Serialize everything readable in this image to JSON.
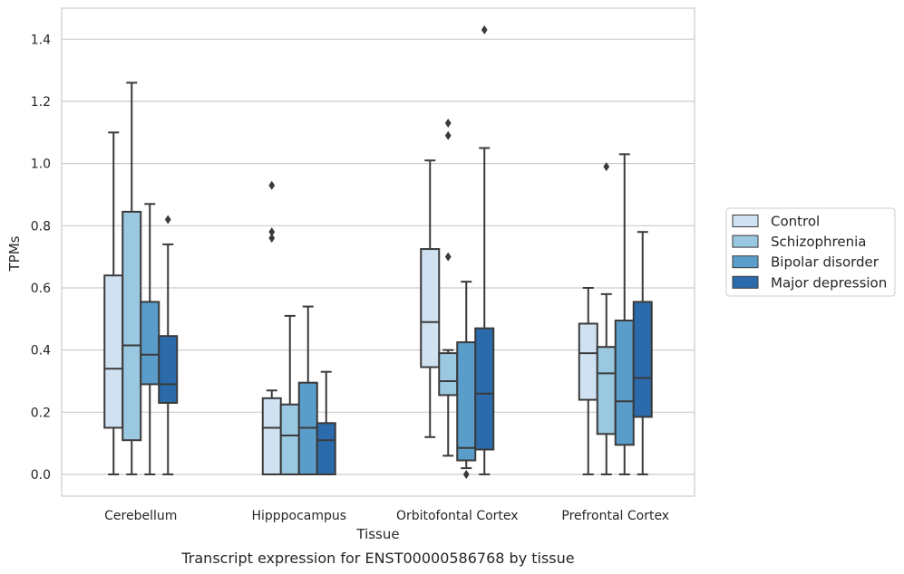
{
  "chart_data": {
    "type": "box",
    "title": "",
    "caption": "Transcript expression for ENST00000586768 by tissue",
    "xlabel": "Tissue",
    "ylabel": "TPMs",
    "ylim": [
      -0.07,
      1.5
    ],
    "yticks": [
      "0.0",
      "0.2",
      "0.4",
      "0.6",
      "0.8",
      "1.0",
      "1.2",
      "1.4"
    ],
    "grid": true,
    "legend_position": "right",
    "categories": [
      "Cerebellum",
      "Hipppocampus",
      "Orbitofontal Cortex",
      "Prefrontal Cortex"
    ],
    "series": [
      {
        "name": "Control",
        "color": "#d0e1f2",
        "boxes": [
          {
            "whislo": 0.0,
            "q1": 0.15,
            "med": 0.34,
            "q3": 0.64,
            "whishi": 1.1,
            "fliers": []
          },
          {
            "whislo": 0.0,
            "q1": 0.0,
            "med": 0.15,
            "q3": 0.245,
            "whishi": 0.27,
            "fliers": [
              0.76,
              0.78,
              0.93
            ]
          },
          {
            "whislo": 0.12,
            "q1": 0.345,
            "med": 0.49,
            "q3": 0.725,
            "whishi": 1.01,
            "fliers": []
          },
          {
            "whislo": 0.0,
            "q1": 0.24,
            "med": 0.39,
            "q3": 0.485,
            "whishi": 0.6,
            "fliers": []
          }
        ]
      },
      {
        "name": "Schizophrenia",
        "color": "#9ac8e0",
        "boxes": [
          {
            "whislo": 0.0,
            "q1": 0.11,
            "med": 0.415,
            "q3": 0.845,
            "whishi": 1.26,
            "fliers": []
          },
          {
            "whislo": 0.0,
            "q1": 0.0,
            "med": 0.125,
            "q3": 0.225,
            "whishi": 0.51,
            "fliers": []
          },
          {
            "whislo": 0.06,
            "q1": 0.255,
            "med": 0.3,
            "q3": 0.39,
            "whishi": 0.4,
            "fliers": [
              0.7,
              1.09,
              1.13
            ]
          },
          {
            "whislo": 0.0,
            "q1": 0.13,
            "med": 0.325,
            "q3": 0.41,
            "whishi": 0.58,
            "fliers": [
              0.99
            ]
          }
        ]
      },
      {
        "name": "Bipolar disorder",
        "color": "#5a9dcb",
        "boxes": [
          {
            "whislo": 0.0,
            "q1": 0.29,
            "med": 0.385,
            "q3": 0.555,
            "whishi": 0.87,
            "fliers": []
          },
          {
            "whislo": 0.0,
            "q1": 0.0,
            "med": 0.15,
            "q3": 0.295,
            "whishi": 0.54,
            "fliers": []
          },
          {
            "whislo": 0.02,
            "q1": 0.045,
            "med": 0.085,
            "q3": 0.425,
            "whishi": 0.62,
            "fliers": [
              0.0
            ]
          },
          {
            "whislo": 0.0,
            "q1": 0.095,
            "med": 0.235,
            "q3": 0.495,
            "whishi": 1.03,
            "fliers": []
          }
        ]
      },
      {
        "name": "Major depression",
        "color": "#2b6bab",
        "boxes": [
          {
            "whislo": 0.0,
            "q1": 0.23,
            "med": 0.29,
            "q3": 0.445,
            "whishi": 0.74,
            "fliers": [
              0.82
            ]
          },
          {
            "whislo": 0.0,
            "q1": 0.0,
            "med": 0.11,
            "q3": 0.165,
            "whishi": 0.33,
            "fliers": []
          },
          {
            "whislo": 0.0,
            "q1": 0.08,
            "med": 0.26,
            "q3": 0.47,
            "whishi": 1.05,
            "fliers": [
              1.43
            ]
          },
          {
            "whislo": 0.0,
            "q1": 0.185,
            "med": 0.31,
            "q3": 0.555,
            "whishi": 0.78,
            "fliers": []
          }
        ]
      }
    ]
  }
}
